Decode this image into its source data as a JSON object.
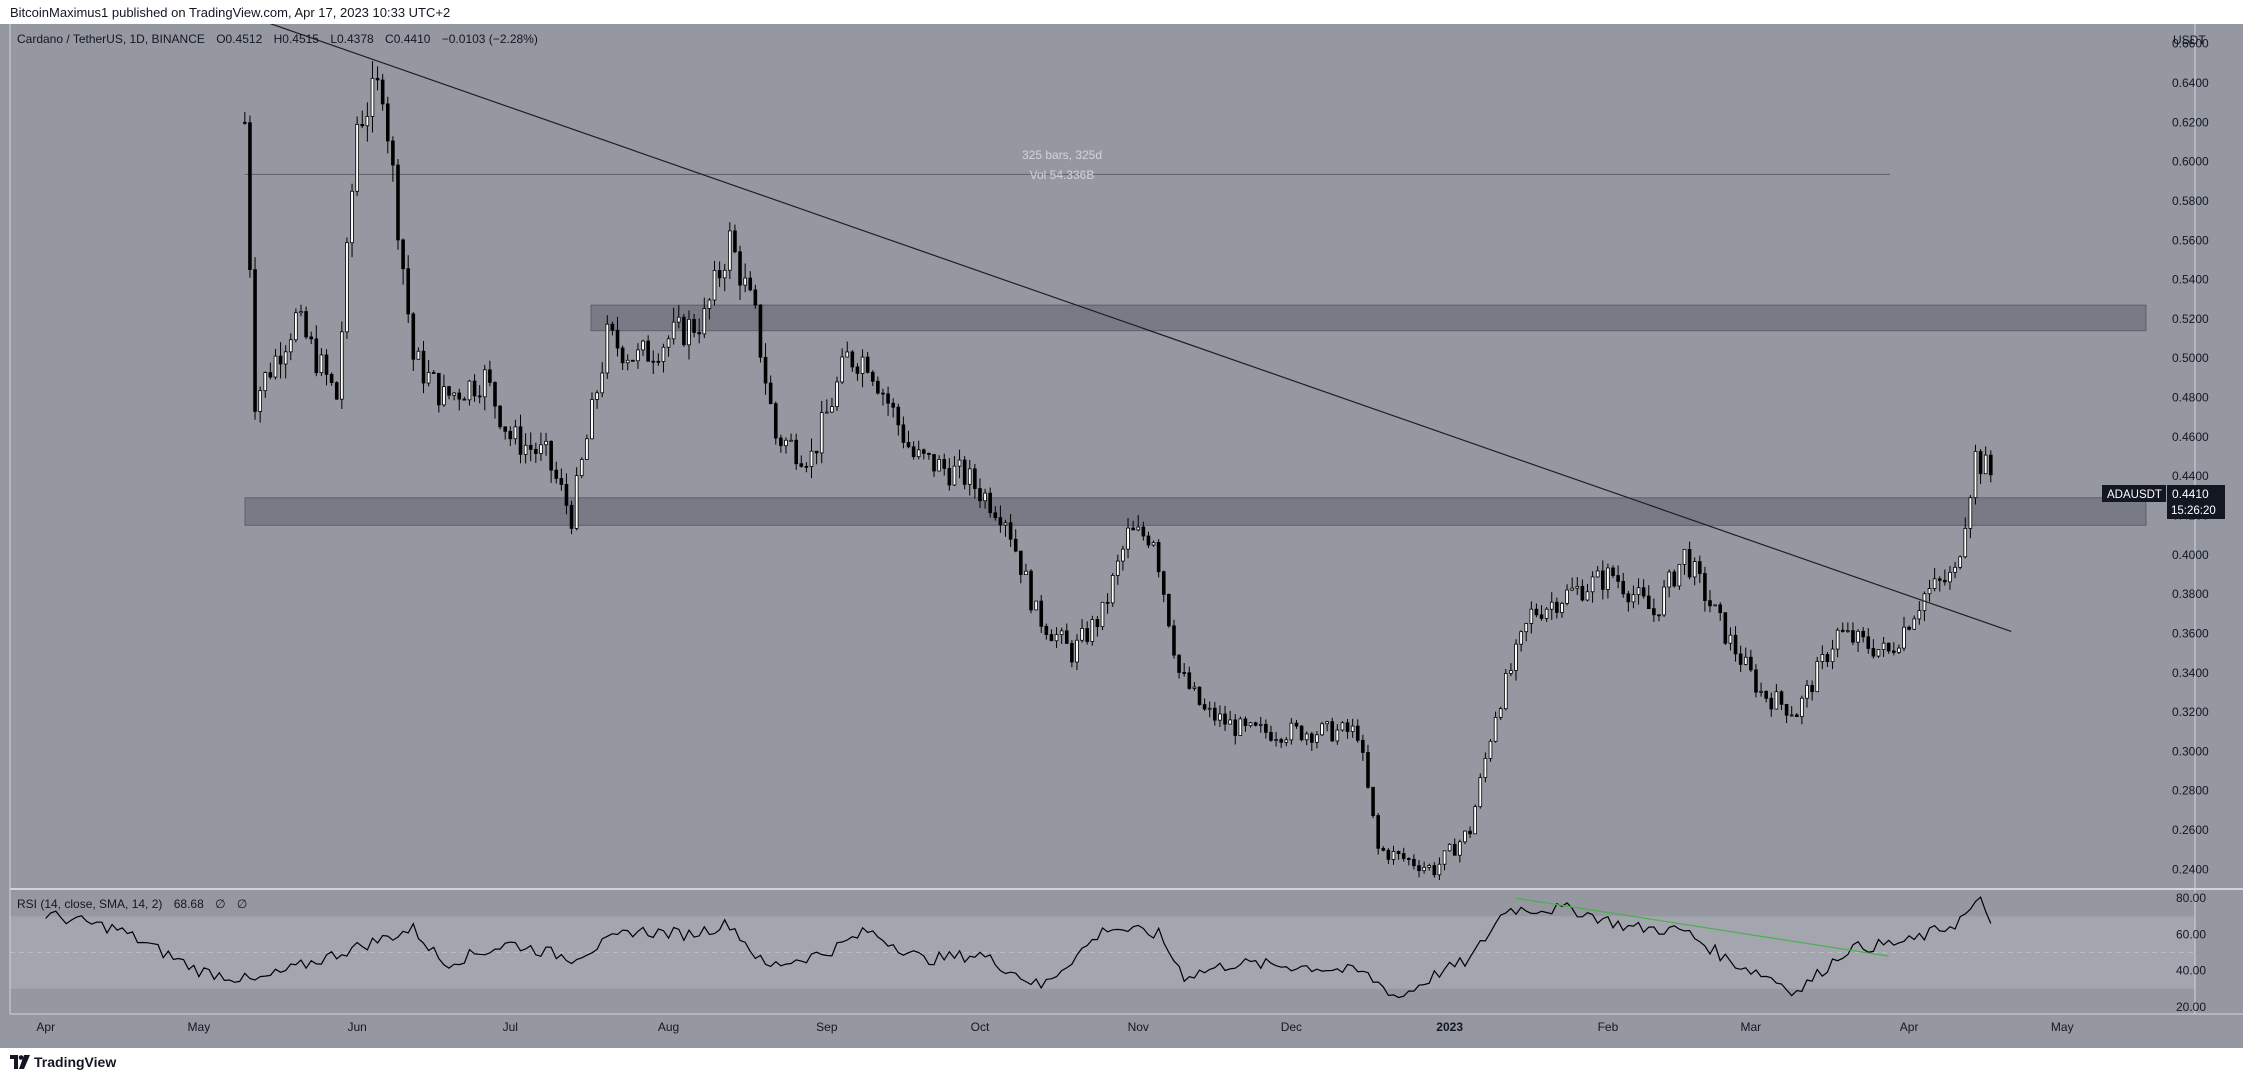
{
  "header": {
    "publisher": "BitcoinMaximus1 published on TradingView.com, Apr 17, 2023 10:33 UTC+2"
  },
  "legend": {
    "symbol": "Cardano / TetherUS, 1D, BINANCE",
    "o_label": "O",
    "o_val": "0.4512",
    "h_label": "H",
    "h_val": "0.4515",
    "l_label": "L",
    "l_val": "0.4378",
    "c_label": "C",
    "c_val": "0.4410",
    "change": "−0.0103 (−2.28%)"
  },
  "axis": {
    "currency": "USDT",
    "price_ticks": [
      "0.6600",
      "0.6400",
      "0.6200",
      "0.6000",
      "0.5800",
      "0.5600",
      "0.5400",
      "0.5200",
      "0.5000",
      "0.4800",
      "0.4600",
      "0.4400",
      "0.4200",
      "0.4000",
      "0.3800",
      "0.3600",
      "0.3400",
      "0.3200",
      "0.3000",
      "0.2800",
      "0.2600",
      "0.2400"
    ],
    "rsi_ticks": [
      "80.00",
      "60.00",
      "40.00",
      "20.00"
    ],
    "months": [
      "Apr",
      "May",
      "Jun",
      "Jul",
      "Aug",
      "Sep",
      "Oct",
      "Nov",
      "Dec",
      "2023",
      "Feb",
      "Mar",
      "Apr",
      "May"
    ]
  },
  "measure": {
    "bars": "325 bars, 325d",
    "vol": "Vol 54.336B"
  },
  "price_tag": {
    "symbol": "ADAUSDT",
    "price": "0.4410",
    "countdown": "15:26:20"
  },
  "rsi": {
    "label": "RSI (14, close, SMA, 14, 2)",
    "value": "68.68",
    "extra1": "∅",
    "extra2": "∅"
  },
  "footer": {
    "brand": "TradingView"
  },
  "colors": {
    "background": "#9598a1",
    "candle": "#000000",
    "zone": "#787b86",
    "rsi_band": "#a3a6af",
    "divergence": "#4caf50",
    "label_bg": "#131722",
    "text": "#131722"
  },
  "chart_data": [
    {
      "type": "candlestick",
      "title": "Cardano / TetherUS, 1D, BINANCE",
      "x": [
        "2022-05-10",
        "2022-05-12",
        "2022-05-20",
        "2022-05-28",
        "2022-06-01",
        "2022-06-06",
        "2022-06-12",
        "2022-06-18",
        "2022-06-26",
        "2022-07-01",
        "2022-07-08",
        "2022-07-13",
        "2022-07-20",
        "2022-07-26",
        "2022-08-01",
        "2022-08-08",
        "2022-08-13",
        "2022-08-18",
        "2022-08-22",
        "2022-08-29",
        "2022-09-05",
        "2022-09-09",
        "2022-09-18",
        "2022-09-28",
        "2022-10-06",
        "2022-10-12",
        "2022-10-19",
        "2022-10-25",
        "2022-10-30",
        "2022-11-04",
        "2022-11-09",
        "2022-11-14",
        "2022-11-22",
        "2022-12-05",
        "2022-12-14",
        "2022-12-18",
        "2022-12-29",
        "2023-01-05",
        "2023-01-10",
        "2023-01-17",
        "2023-01-24",
        "2023-02-02",
        "2023-02-10",
        "2023-02-16",
        "2023-02-24",
        "2023-03-03",
        "2023-03-10",
        "2023-03-18",
        "2023-03-28",
        "2023-04-04",
        "2023-04-10",
        "2023-04-14",
        "2023-04-17"
      ],
      "close": [
        0.62,
        0.48,
        0.52,
        0.48,
        0.62,
        0.64,
        0.5,
        0.48,
        0.49,
        0.46,
        0.45,
        0.42,
        0.51,
        0.5,
        0.51,
        0.52,
        0.56,
        0.52,
        0.46,
        0.45,
        0.5,
        0.5,
        0.45,
        0.44,
        0.42,
        0.37,
        0.35,
        0.37,
        0.41,
        0.41,
        0.34,
        0.32,
        0.31,
        0.31,
        0.31,
        0.25,
        0.24,
        0.26,
        0.32,
        0.37,
        0.38,
        0.39,
        0.37,
        0.4,
        0.36,
        0.33,
        0.32,
        0.36,
        0.35,
        0.38,
        0.39,
        0.45,
        0.441
      ],
      "ylim": [
        0.23,
        0.67
      ],
      "levels": {
        "resistance_zone": [
          0.514,
          0.527
        ],
        "support_zone": [
          0.415,
          0.429
        ],
        "measure_line": 0.5935
      },
      "trendline": {
        "from": [
          "2022-05-13",
          0.672
        ],
        "to": [
          "2023-04-21",
          0.361
        ]
      }
    },
    {
      "type": "line",
      "title": "RSI (14, close, SMA, 14, 2)",
      "x": [
        "2022-04-01",
        "2022-04-15",
        "2022-05-01",
        "2022-05-12",
        "2022-05-31",
        "2022-06-12",
        "2022-06-18",
        "2022-07-01",
        "2022-07-13",
        "2022-07-25",
        "2022-08-05",
        "2022-08-13",
        "2022-08-20",
        "2022-09-01",
        "2022-09-09",
        "2022-09-20",
        "2022-10-01",
        "2022-10-13",
        "2022-10-26",
        "2022-11-05",
        "2022-11-10",
        "2022-11-20",
        "2022-12-05",
        "2022-12-15",
        "2022-12-22",
        "2022-12-30",
        "2023-01-05",
        "2023-01-12",
        "2023-01-25",
        "2023-02-05",
        "2023-02-16",
        "2023-02-25",
        "2023-03-05",
        "2023-03-10",
        "2023-03-20",
        "2023-04-01",
        "2023-04-10",
        "2023-04-15",
        "2023-04-17"
      ],
      "values": [
        71,
        63,
        40,
        34,
        52,
        63,
        44,
        55,
        47,
        62,
        60,
        66,
        42,
        50,
        62,
        46,
        49,
        31,
        64,
        60,
        37,
        44,
        42,
        39,
        25,
        39,
        46,
        74,
        74,
        64,
        62,
        45,
        36,
        28,
        52,
        56,
        66,
        78,
        68.68
      ],
      "ylim": [
        16,
        84
      ],
      "band": [
        30,
        70
      ],
      "midline": 50,
      "divergence": {
        "from": [
          "2023-01-14",
          80
        ],
        "to": [
          "2023-03-28",
          48
        ]
      }
    }
  ]
}
